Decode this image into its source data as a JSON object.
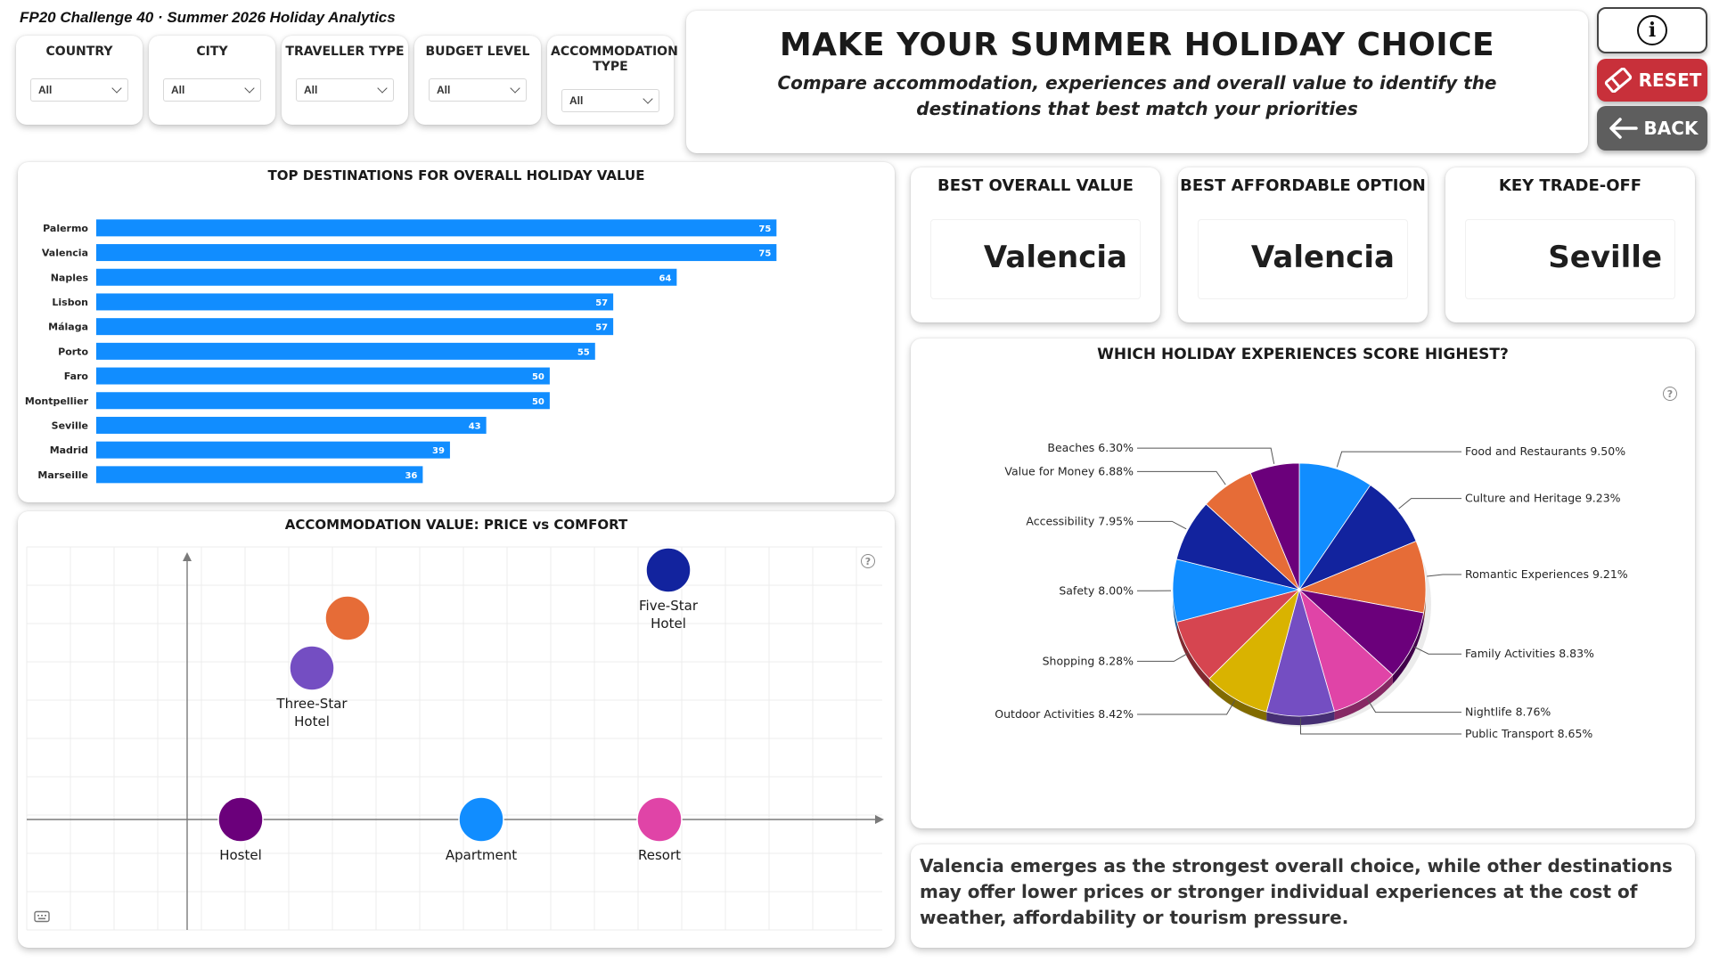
{
  "app_title": "FP20 Challenge 40 · Summer 2026 Holiday Analytics",
  "slicers": [
    {
      "label": "COUNTRY",
      "value": "All"
    },
    {
      "label": "CITY",
      "value": "All"
    },
    {
      "label": "TRAVELLER TYPE",
      "value": "All"
    },
    {
      "label": "BUDGET LEVEL",
      "value": "All"
    },
    {
      "label": "ACCOMMODATION TYPE",
      "value": "All"
    }
  ],
  "header": {
    "title": "MAKE YOUR SUMMER HOLIDAY CHOICE",
    "subtitle": "Compare accommodation, experiences and overall value to identify the destinations that best match your priorities"
  },
  "buttons": {
    "info_glyph": "i",
    "reset_label": "RESET",
    "back_label": "BACK",
    "reset_color": "#c8303a",
    "back_color": "#5e5e5e"
  },
  "kpis": [
    {
      "title": "BEST OVERALL VALUE",
      "value": "Valencia"
    },
    {
      "title": "BEST AFFORDABLE OPTION",
      "value": "Valencia"
    },
    {
      "title": "KEY TRADE-OFF",
      "value": "Seville"
    }
  ],
  "insight": "Valencia emerges as the strongest overall choice, while other destinations may offer lower prices or stronger individual experiences at the cost of weather, affordability or tourism pressure.",
  "help_glyph": "?",
  "chart_data": [
    {
      "type": "bar",
      "orientation": "horizontal",
      "title": "TOP DESTINATIONS FOR OVERALL HOLIDAY VALUE",
      "categories": [
        "Palermo",
        "Valencia",
        "Naples",
        "Lisbon",
        "Málaga",
        "Porto",
        "Faro",
        "Montpellier",
        "Seville",
        "Madrid",
        "Marseille"
      ],
      "values": [
        75,
        75,
        64,
        57,
        57,
        55,
        50,
        50,
        43,
        39,
        36
      ],
      "xlim": [
        0,
        90
      ],
      "color": "#118dff"
    },
    {
      "type": "scatter",
      "title": "ACCOMMODATION VALUE: PRICE vs COMFORT",
      "xlim": [
        -1,
        4
      ],
      "ylim": [
        -1,
        2
      ],
      "grid": true,
      "points": [
        {
          "label": "Hostel",
          "x": 0.3,
          "y": 0,
          "color": "#6b007b"
        },
        {
          "label": "Apartment",
          "x": 1.65,
          "y": 0,
          "color": "#118dff"
        },
        {
          "label": "Resort",
          "x": 2.65,
          "y": 0,
          "color": "#e044a7"
        },
        {
          "label": "Three-Star Hotel",
          "x": 0.7,
          "y": 0.85,
          "color": "#744ec2"
        },
        {
          "label": "",
          "x": 0.9,
          "y": 1.13,
          "color": "#e66c37"
        },
        {
          "label": "Five-Star Hotel",
          "x": 2.7,
          "y": 1.4,
          "color": "#12239e"
        }
      ]
    },
    {
      "type": "pie",
      "title": "WHICH HOLIDAY EXPERIENCES SCORE HIGHEST?",
      "slices": [
        {
          "label": "Food and Restaurants",
          "value": 9.5,
          "display": "9.50%",
          "color": "#118dff"
        },
        {
          "label": "Culture and Heritage",
          "value": 9.23,
          "display": "9.23%",
          "color": "#12239e"
        },
        {
          "label": "Romantic Experiences",
          "value": 9.21,
          "display": "9.21%",
          "color": "#e66c37"
        },
        {
          "label": "Family Activities",
          "value": 8.83,
          "display": "8.83%",
          "color": "#6b007b"
        },
        {
          "label": "Nightlife",
          "value": 8.76,
          "display": "8.76%",
          "color": "#e044a7"
        },
        {
          "label": "Public Transport",
          "value": 8.65,
          "display": "8.65%",
          "color": "#744ec2"
        },
        {
          "label": "Outdoor Activities",
          "value": 8.42,
          "display": "8.42%",
          "color": "#d9b300"
        },
        {
          "label": "Shopping",
          "value": 8.28,
          "display": "8.28%",
          "color": "#d64550"
        },
        {
          "label": "Safety",
          "value": 8.0,
          "display": "8.00%",
          "color": "#118dff"
        },
        {
          "label": "Accessibility",
          "value": 7.95,
          "display": "7.95%",
          "color": "#12239e"
        },
        {
          "label": "Value for Money",
          "value": 6.88,
          "display": "6.88%",
          "color": "#e66c37"
        },
        {
          "label": "Beaches",
          "value": 6.3,
          "display": "6.30%",
          "color": "#6b007b"
        }
      ]
    }
  ]
}
